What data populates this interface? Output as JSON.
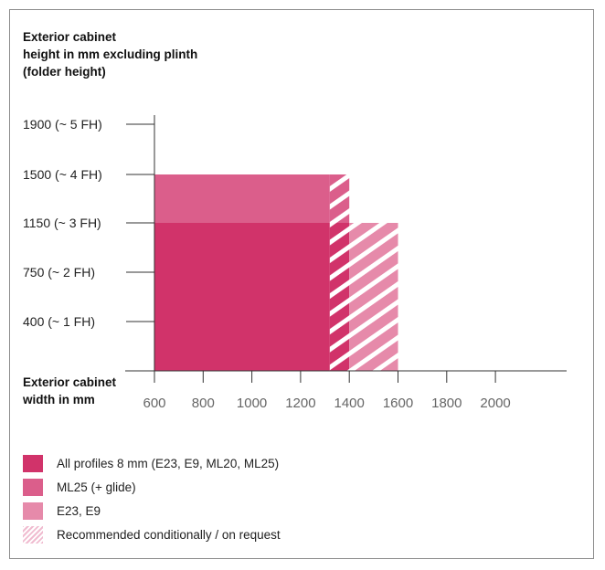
{
  "chart_data": {
    "type": "bar",
    "ylabel_lines": [
      "Exterior cabinet",
      "height in mm excluding plinth",
      "(folder height)"
    ],
    "xlabel_lines": [
      "Exterior cabinet",
      "width in mm"
    ],
    "y_ticks": [
      {
        "value": 400,
        "label": "400 (~ 1 FH)"
      },
      {
        "value": 750,
        "label": "750 (~ 2 FH)"
      },
      {
        "value": 1150,
        "label": "1150 (~ 3 FH)"
      },
      {
        "value": 1500,
        "label": "1500 (~ 4 FH)"
      },
      {
        "value": 1900,
        "label": "1900 (~  5 FH)"
      }
    ],
    "x_ticks": [
      600,
      800,
      1000,
      1200,
      1400,
      1600,
      1800,
      2000
    ],
    "xlim": [
      600,
      2000
    ],
    "ylim": [
      0,
      1900
    ],
    "regions": [
      {
        "name": "All profiles 8 mm (E23, E9, ML20, ML25)",
        "x_from": 600,
        "x_to": 1320,
        "y_to": 1150,
        "color": "#d1336a",
        "style": "solid"
      },
      {
        "name": "All profiles 8 mm (E23, E9, ML20, ML25)",
        "x_from": 1320,
        "x_to": 1400,
        "y_to": 1150,
        "color": "#d1336a",
        "style": "hatched"
      },
      {
        "name": "ML25 (+ glide)",
        "x_from": 600,
        "x_to": 1320,
        "y_from": 1150,
        "y_to": 1500,
        "color": "#db5e8b",
        "style": "solid"
      },
      {
        "name": "ML25 (+ glide)",
        "x_from": 1320,
        "x_to": 1400,
        "y_from": 1150,
        "y_to": 1500,
        "color": "#db5e8b",
        "style": "hatched"
      },
      {
        "name": "E23, E9",
        "x_from": 1400,
        "x_to": 1600,
        "y_to": 1150,
        "color": "#e68aaa",
        "style": "hatched"
      }
    ],
    "legend": [
      {
        "label": "All profiles 8 mm (E23, E9, ML20, ML25)",
        "color": "#d1336a",
        "style": "solid"
      },
      {
        "label": "ML25 (+ glide)",
        "color": "#db5e8b",
        "style": "solid"
      },
      {
        "label": "E23, E9",
        "color": "#e68aaa",
        "style": "solid"
      },
      {
        "label": "Recommended conditionally / on request",
        "color": "#f0bcd0",
        "style": "hatched"
      }
    ]
  }
}
